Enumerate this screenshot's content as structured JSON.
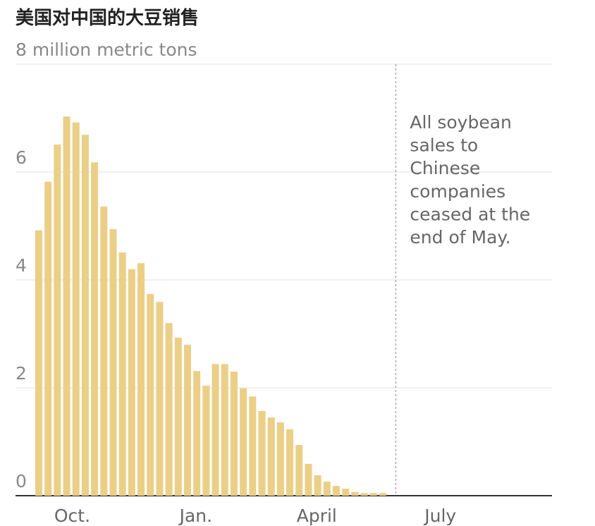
{
  "chart_data": {
    "type": "bar",
    "title": "美国对中国的大豆销售",
    "x": [
      0,
      1,
      2,
      3,
      4,
      5,
      6,
      7,
      8,
      9,
      10,
      11,
      12,
      13,
      14,
      15,
      16,
      17,
      18,
      19,
      20,
      21,
      22,
      23,
      24,
      25,
      26,
      27,
      28,
      29,
      30,
      31,
      32,
      33,
      34,
      35,
      36,
      37
    ],
    "values": [
      4.92,
      5.82,
      6.51,
      7.03,
      6.92,
      6.69,
      6.18,
      5.36,
      4.94,
      4.51,
      4.2,
      4.31,
      3.74,
      3.59,
      3.2,
      2.93,
      2.8,
      2.31,
      2.04,
      2.44,
      2.44,
      2.3,
      1.99,
      1.84,
      1.57,
      1.45,
      1.36,
      1.23,
      0.94,
      0.59,
      0.38,
      0.26,
      0.18,
      0.13,
      0.07,
      0.05,
      0.05,
      0.05
    ],
    "color": "#ebcf87",
    "xlim": [
      -2.5,
      55.2
    ],
    "xticks": [
      {
        "value": 3.6,
        "label": "Oct."
      },
      {
        "value": 16.9,
        "label": "Jan."
      },
      {
        "value": 29.9,
        "label": "April"
      },
      {
        "value": 43.2,
        "label": "July"
      }
    ],
    "ylim": [
      0,
      8
    ],
    "yticks": [
      0,
      2,
      4,
      6,
      {
        "value": 8,
        "label": "8 million metric tons"
      }
    ],
    "grid": true,
    "annotation": {
      "x": 38.4,
      "lines": [
        "All soybean",
        "sales to",
        "Chinese",
        "companies",
        "ceased at the",
        "end of May."
      ]
    }
  }
}
